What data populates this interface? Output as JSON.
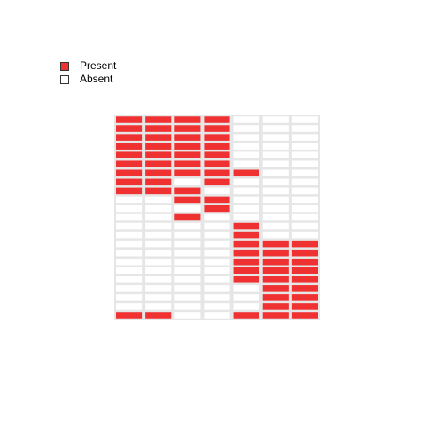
{
  "chart_data": {
    "type": "heatmap",
    "title": "",
    "xlabel": "",
    "ylabel": "",
    "columns": 7,
    "rows": 23,
    "legend": {
      "placement": "top-left",
      "entries": [
        {
          "label": "Present",
          "value": 1,
          "color": "#ef3131"
        },
        {
          "label": "Absent",
          "value": 0,
          "color": "#ffffff"
        }
      ]
    },
    "colors": {
      "present": "#ef3131",
      "absent": "#ffffff",
      "grid": "#e6e6e6"
    },
    "matrix": [
      [
        1,
        1,
        1,
        1,
        0,
        0,
        0
      ],
      [
        1,
        1,
        1,
        1,
        0,
        0,
        0
      ],
      [
        1,
        1,
        1,
        1,
        0,
        0,
        0
      ],
      [
        1,
        1,
        1,
        1,
        0,
        0,
        0
      ],
      [
        1,
        1,
        1,
        1,
        0,
        0,
        0
      ],
      [
        1,
        1,
        1,
        1,
        0,
        0,
        0
      ],
      [
        1,
        1,
        1,
        1,
        1,
        0,
        0
      ],
      [
        1,
        1,
        0,
        1,
        0,
        0,
        0
      ],
      [
        1,
        1,
        1,
        0,
        0,
        0,
        0
      ],
      [
        0,
        0,
        1,
        1,
        0,
        0,
        0
      ],
      [
        0,
        0,
        0,
        1,
        0,
        0,
        0
      ],
      [
        0,
        0,
        1,
        0,
        0,
        0,
        0
      ],
      [
        0,
        0,
        0,
        0,
        1,
        0,
        0
      ],
      [
        0,
        0,
        0,
        0,
        1,
        0,
        0
      ],
      [
        0,
        0,
        0,
        0,
        1,
        1,
        1
      ],
      [
        0,
        0,
        0,
        0,
        1,
        1,
        1
      ],
      [
        0,
        0,
        0,
        0,
        1,
        1,
        1
      ],
      [
        0,
        0,
        0,
        0,
        1,
        1,
        1
      ],
      [
        0,
        0,
        0,
        0,
        1,
        1,
        1
      ],
      [
        0,
        0,
        0,
        0,
        0,
        1,
        1
      ],
      [
        0,
        0,
        0,
        0,
        0,
        1,
        1
      ],
      [
        0,
        0,
        0,
        0,
        0,
        1,
        1
      ],
      [
        1,
        1,
        0,
        0,
        1,
        1,
        1
      ]
    ]
  }
}
